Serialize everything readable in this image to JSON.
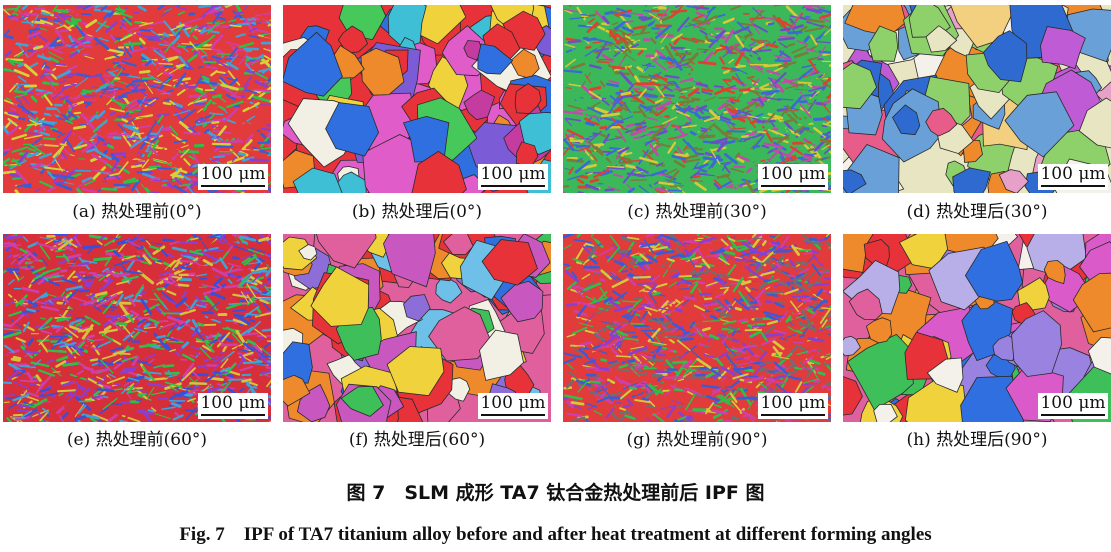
{
  "panels": [
    {
      "caption": "(a) 热处理前(0°)",
      "scale": "100 μm",
      "type": "fine",
      "colors": [
        "#e23b3b",
        "#3b5bd6",
        "#2fbf4a",
        "#8a3fd1",
        "#d6d13b",
        "#d03fa9",
        "#3fa3d6"
      ]
    },
    {
      "caption": "(b) 热处理后(0°)",
      "scale": "100 μm",
      "type": "coarse",
      "colors": [
        "#e8323a",
        "#2f6fe0",
        "#f0d23c",
        "#e05cc8",
        "#3fbfd6",
        "#7c5bd6",
        "#ef8a2c",
        "#46c85a",
        "#c43ca0",
        "#f2efe4"
      ]
    },
    {
      "caption": "(c) 热处理前(30°)",
      "scale": "100 μm",
      "type": "fine",
      "colors": [
        "#3ab85a",
        "#6a4fc8",
        "#d8c93a",
        "#e0402f",
        "#3a6ad6",
        "#c34aa8",
        "#7a7a3a"
      ]
    },
    {
      "caption": "(d) 热处理后(30°)",
      "scale": "100 μm",
      "type": "coarse",
      "colors": [
        "#e8e6c2",
        "#6aa0d8",
        "#e7a0c8",
        "#c05bd6",
        "#8ed06a",
        "#f2d080",
        "#e85c8a",
        "#2f6ad0",
        "#f4f1ea",
        "#ef8a2c"
      ]
    },
    {
      "caption": "(e) 热处理前(60°)",
      "scale": "100 μm",
      "type": "fine",
      "colors": [
        "#d62f3a",
        "#3a4fd6",
        "#8a3fd1",
        "#2fbf4a",
        "#d6c23b",
        "#d03fa9",
        "#3fa3d6"
      ]
    },
    {
      "caption": "(f) 热处理后(60°)",
      "scale": "100 μm",
      "type": "coarse",
      "colors": [
        "#e0609e",
        "#8d6ed8",
        "#f0d23c",
        "#e8323a",
        "#6fc0e8",
        "#3fbf5a",
        "#c858c0",
        "#ef8a2c",
        "#f2efe4",
        "#2f6fe0"
      ]
    },
    {
      "caption": "(g) 热处理前(90°)",
      "scale": "100 μm",
      "type": "fine",
      "colors": [
        "#e23b3b",
        "#d6c83b",
        "#3b5bd6",
        "#2fbf4a",
        "#8a3fd1",
        "#d03fa9",
        "#6f6f6f"
      ]
    },
    {
      "caption": "(h) 热处理后(90°)",
      "scale": "100 μm",
      "type": "coarse",
      "colors": [
        "#e0609e",
        "#f0d23c",
        "#d95ac8",
        "#e8323a",
        "#b8aee8",
        "#3fbf5a",
        "#f4f1ea",
        "#2f6fe0",
        "#ef8a2c",
        "#9a82e0"
      ]
    }
  ],
  "figure": {
    "title_cn": "图 7　SLM 成形 TA7 钛合金热处理前后 IPF 图",
    "title_en": "Fig. 7　IPF of TA7 titanium alloy before and after heat treatment at different forming angles"
  }
}
